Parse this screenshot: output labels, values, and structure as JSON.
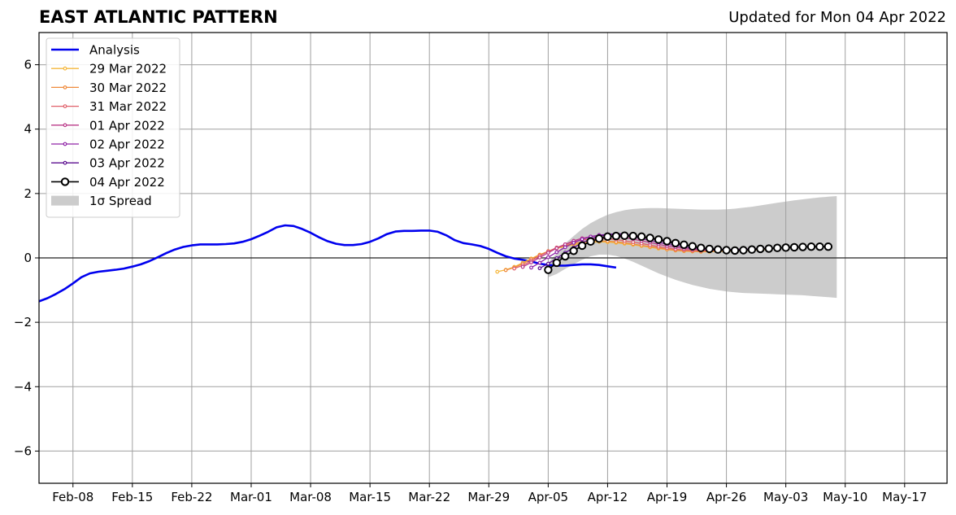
{
  "chart_data": {
    "type": "line",
    "title": "EAST ATLANTIC PATTERN",
    "subtitle": "Updated for Mon 04 Apr 2022",
    "xlabel": "",
    "ylabel": "",
    "ylim": [
      -7,
      7
    ],
    "yticks": [
      -6,
      -4,
      -2,
      0,
      2,
      4,
      6
    ],
    "ytick_labels": [
      "−6",
      "−4",
      "−2",
      "0",
      "2",
      "4",
      "6"
    ],
    "xlim": [
      "2022-02-04",
      "2022-05-22"
    ],
    "xticks": [
      "2022-02-08",
      "2022-02-15",
      "2022-02-22",
      "2022-03-01",
      "2022-03-08",
      "2022-03-15",
      "2022-03-22",
      "2022-03-29",
      "2022-04-05",
      "2022-04-12",
      "2022-04-19",
      "2022-04-26",
      "2022-05-03",
      "2022-05-10",
      "2022-05-17"
    ],
    "xtick_labels": [
      "Feb-08",
      "Feb-15",
      "Feb-22",
      "Mar-01",
      "Mar-08",
      "Mar-15",
      "Mar-22",
      "Mar-29",
      "Apr-05",
      "Apr-12",
      "Apr-19",
      "Apr-26",
      "May-03",
      "May-10",
      "May-17"
    ],
    "grid": true,
    "zero_line": true,
    "legend_position": "top-left",
    "colors": {
      "analysis": "#0000ee",
      "spread": "#cccccc",
      "grid": "#a0a0a0",
      "forecasts": [
        "#f5b73b",
        "#ef8a3c",
        "#e0606a",
        "#bb3c8a",
        "#9025a8",
        "#5d1090",
        "#000000"
      ]
    },
    "legend": {
      "analysis": "Analysis",
      "spread": "1σ Spread"
    },
    "analysis": {
      "name": "Analysis",
      "start_date": "2022-02-04",
      "values": [
        -1.35,
        -1.25,
        -1.12,
        -0.97,
        -0.79,
        -0.6,
        -0.48,
        -0.43,
        -0.4,
        -0.37,
        -0.33,
        -0.27,
        -0.2,
        -0.1,
        0.02,
        0.15,
        0.26,
        0.34,
        0.39,
        0.42,
        0.42,
        0.42,
        0.43,
        0.45,
        0.5,
        0.58,
        0.69,
        0.81,
        0.95,
        1.01,
        0.99,
        0.9,
        0.78,
        0.64,
        0.52,
        0.44,
        0.4,
        0.4,
        0.43,
        0.5,
        0.61,
        0.74,
        0.82,
        0.84,
        0.84,
        0.85,
        0.85,
        0.81,
        0.7,
        0.55,
        0.46,
        0.42,
        0.37,
        0.28,
        0.16,
        0.05,
        -0.02,
        -0.06,
        -0.11,
        -0.18,
        -0.22,
        -0.24,
        -0.24,
        -0.22,
        -0.2,
        -0.2,
        -0.22,
        -0.26,
        -0.3
      ]
    },
    "spread": {
      "start_date": "2022-04-05",
      "upper": [
        -0.15,
        0.15,
        0.45,
        0.68,
        0.9,
        1.08,
        1.22,
        1.34,
        1.42,
        1.48,
        1.52,
        1.54,
        1.55,
        1.55,
        1.54,
        1.53,
        1.52,
        1.51,
        1.5,
        1.5,
        1.5,
        1.51,
        1.53,
        1.56,
        1.59,
        1.63,
        1.67,
        1.71,
        1.75,
        1.79,
        1.82,
        1.85,
        1.88,
        1.9,
        1.92
      ],
      "lower": [
        -0.6,
        -0.5,
        -0.34,
        -0.2,
        -0.06,
        0.05,
        0.1,
        0.1,
        0.06,
        -0.02,
        -0.12,
        -0.24,
        -0.36,
        -0.48,
        -0.58,
        -0.68,
        -0.76,
        -0.84,
        -0.9,
        -0.96,
        -1.0,
        -1.04,
        -1.07,
        -1.09,
        -1.1,
        -1.11,
        -1.12,
        -1.13,
        -1.14,
        -1.15,
        -1.16,
        -1.18,
        -1.2,
        -1.22,
        -1.24
      ]
    },
    "forecasts": [
      {
        "name": "29 Mar 2022",
        "start_date": "2022-03-30",
        "values": [
          -0.43,
          -0.37,
          -0.28,
          -0.15,
          -0.02,
          0.1,
          0.2,
          0.29,
          0.36,
          0.41,
          0.45,
          0.48,
          0.5,
          0.49,
          0.47,
          0.44,
          0.41,
          0.37,
          0.33,
          0.29,
          0.26,
          0.23,
          0.21,
          0.2,
          0.19,
          0.19,
          0.2,
          0.21,
          0.22,
          0.23,
          0.24,
          0.25,
          0.26
        ]
      },
      {
        "name": "30 Mar 2022",
        "start_date": "2022-03-31",
        "values": [
          -0.38,
          -0.3,
          -0.18,
          -0.04,
          0.09,
          0.21,
          0.31,
          0.39,
          0.45,
          0.49,
          0.52,
          0.53,
          0.52,
          0.5,
          0.47,
          0.43,
          0.39,
          0.35,
          0.31,
          0.27,
          0.24,
          0.22,
          0.21,
          0.2,
          0.21,
          0.22,
          0.23,
          0.24,
          0.25,
          0.26,
          0.27,
          0.28
        ]
      },
      {
        "name": "31 Mar 2022",
        "start_date": "2022-04-01",
        "values": [
          -0.33,
          -0.23,
          -0.09,
          0.06,
          0.2,
          0.32,
          0.42,
          0.5,
          0.56,
          0.59,
          0.6,
          0.59,
          0.57,
          0.53,
          0.49,
          0.45,
          0.4,
          0.35,
          0.31,
          0.27,
          0.25,
          0.23,
          0.22,
          0.22,
          0.23,
          0.24,
          0.25,
          0.26,
          0.27,
          0.28,
          0.29
        ]
      },
      {
        "name": "01 Apr 2022",
        "start_date": "2022-04-02",
        "values": [
          -0.28,
          -0.14,
          0.01,
          0.16,
          0.3,
          0.42,
          0.53,
          0.61,
          0.66,
          0.69,
          0.69,
          0.67,
          0.63,
          0.58,
          0.53,
          0.48,
          0.42,
          0.37,
          0.33,
          0.29,
          0.27,
          0.25,
          0.24,
          0.24,
          0.25,
          0.26,
          0.27,
          0.28,
          0.29,
          0.3
        ]
      },
      {
        "name": "02 Apr 2022",
        "start_date": "2022-04-03",
        "values": [
          -0.3,
          -0.15,
          0.02,
          0.18,
          0.33,
          0.47,
          0.58,
          0.66,
          0.71,
          0.73,
          0.72,
          0.69,
          0.65,
          0.6,
          0.54,
          0.48,
          0.43,
          0.38,
          0.34,
          0.3,
          0.28,
          0.26,
          0.25,
          0.25,
          0.26,
          0.27,
          0.28,
          0.29,
          0.3
        ]
      },
      {
        "name": "03 Apr 2022",
        "start_date": "2022-04-04",
        "values": [
          -0.32,
          -0.18,
          -0.01,
          0.16,
          0.32,
          0.47,
          0.59,
          0.68,
          0.73,
          0.75,
          0.74,
          0.7,
          0.66,
          0.61,
          0.55,
          0.49,
          0.44,
          0.39,
          0.35,
          0.31,
          0.29,
          0.27,
          0.26,
          0.26,
          0.27,
          0.28,
          0.29,
          0.3
        ]
      },
      {
        "name": "04 Apr 2022",
        "start_date": "2022-04-05",
        "values": [
          -0.37,
          -0.15,
          0.05,
          0.22,
          0.38,
          0.51,
          0.6,
          0.66,
          0.68,
          0.69,
          0.68,
          0.66,
          0.62,
          0.57,
          0.52,
          0.46,
          0.41,
          0.36,
          0.31,
          0.28,
          0.26,
          0.24,
          0.23,
          0.24,
          0.26,
          0.28,
          0.29,
          0.31,
          0.32,
          0.33,
          0.34,
          0.35,
          0.35,
          0.35
        ]
      }
    ]
  }
}
